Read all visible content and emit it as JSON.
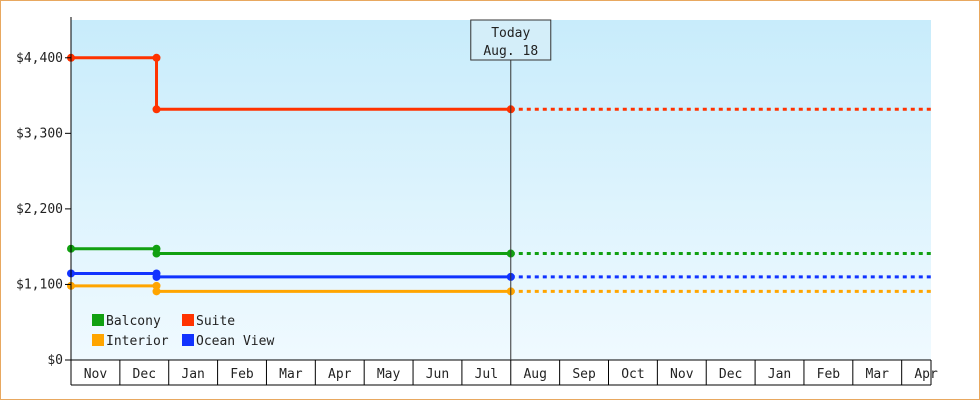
{
  "chart_data": {
    "type": "line",
    "y_tick_labels": [
      "$0",
      "$1,100",
      "$2,200",
      "$3,300",
      "$4,400"
    ],
    "y_ticks": [
      0,
      1100,
      2200,
      3300,
      4400
    ],
    "ylim": [
      0,
      4950
    ],
    "month_labels": [
      "Nov",
      "Dec",
      "Jan",
      "Feb",
      "Mar",
      "Apr",
      "May",
      "Jun",
      "Jul",
      "Aug",
      "Sep",
      "Oct",
      "Nov",
      "Dec",
      "Jan",
      "Feb",
      "Mar",
      "Apr"
    ],
    "x_unit": "month index from first labeled month (Nov = 0)",
    "xlim": [
      0,
      17.6
    ],
    "today": {
      "line1": "Today",
      "line2": "Aug. 18",
      "x": 9.0
    },
    "grid": false,
    "legend_position": "bottom-left",
    "series": [
      {
        "name": "Balcony",
        "color": "#11a011",
        "points": [
          [
            0,
            1620
          ],
          [
            1.75,
            1620
          ],
          [
            1.75,
            1550
          ],
          [
            9.0,
            1550
          ]
        ],
        "projection": [
          [
            9.0,
            1550
          ],
          [
            17.6,
            1550
          ]
        ]
      },
      {
        "name": "Suite",
        "color": "#ff3300",
        "points": [
          [
            0,
            4400
          ],
          [
            1.75,
            4400
          ],
          [
            1.75,
            3650
          ],
          [
            9.0,
            3650
          ]
        ],
        "projection": [
          [
            9.0,
            3650
          ],
          [
            17.6,
            3650
          ]
        ]
      },
      {
        "name": "Interior",
        "color": "#ffa500",
        "points": [
          [
            0,
            1080
          ],
          [
            1.75,
            1080
          ],
          [
            1.75,
            1000
          ],
          [
            9.0,
            1000
          ]
        ],
        "projection": [
          [
            9.0,
            1000
          ],
          [
            17.6,
            1000
          ]
        ]
      },
      {
        "name": "Ocean View",
        "color": "#1133ff",
        "points": [
          [
            0,
            1260
          ],
          [
            1.75,
            1260
          ],
          [
            1.75,
            1210
          ],
          [
            9.0,
            1210
          ]
        ],
        "projection": [
          [
            9.0,
            1210
          ],
          [
            17.6,
            1210
          ]
        ]
      }
    ]
  }
}
